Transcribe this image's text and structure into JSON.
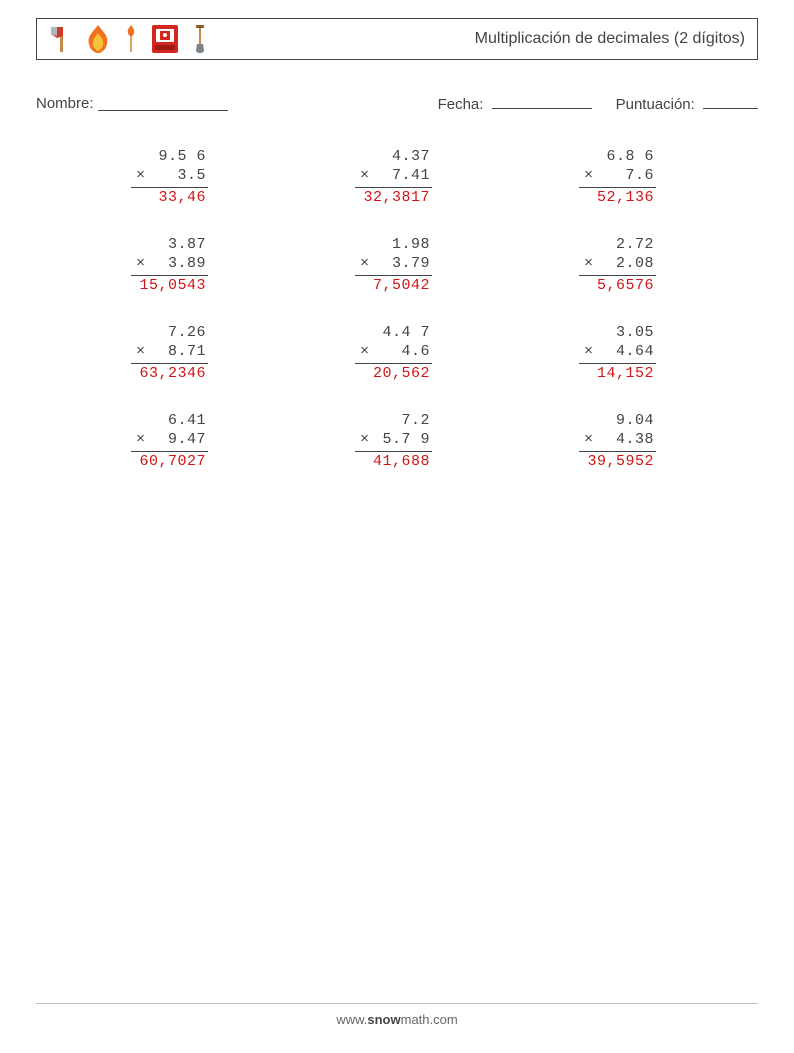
{
  "header": {
    "title": "Multiplicación de decimales (2 dígitos)",
    "icons": [
      "axe-icon",
      "fire-icon",
      "match-icon",
      "alarm-icon",
      "shovel-icon"
    ]
  },
  "labels": {
    "name": "Nombre:",
    "date": "Fecha:",
    "score": "Puntuación:"
  },
  "operator": "×",
  "colors": {
    "text": "#444444",
    "answer": "#d21616",
    "border": "#444444",
    "background": "#ffffff"
  },
  "fonts": {
    "body": "Arial, Helvetica, sans-serif",
    "numbers": "monospace",
    "title_size": 16,
    "label_size": 15,
    "number_size": 15
  },
  "problems": [
    {
      "a": "9.5 6",
      "b": "3.5",
      "ans": "33,46"
    },
    {
      "a": "4.37",
      "b": "7.41",
      "ans": "32,3817"
    },
    {
      "a": "6.8 6",
      "b": "7.6",
      "ans": "52,136"
    },
    {
      "a": "3.87",
      "b": "3.89",
      "ans": "15,0543"
    },
    {
      "a": "1.98",
      "b": "3.79",
      "ans": "7,5042"
    },
    {
      "a": "2.72",
      "b": "2.08",
      "ans": "5,6576"
    },
    {
      "a": "7.26",
      "b": "8.71",
      "ans": "63,2346"
    },
    {
      "a": "4.4 7",
      "b": "4.6",
      "ans": "20,562"
    },
    {
      "a": "3.05",
      "b": "4.64",
      "ans": "14,152"
    },
    {
      "a": "6.41",
      "b": "9.47",
      "ans": "60,7027"
    },
    {
      "a": "7.2",
      "b": "5.7 9",
      "ans": "41,688"
    },
    {
      "a": "9.04",
      "b": "4.38",
      "ans": "39,5952"
    }
  ],
  "footer": {
    "prefix": "www.",
    "brand": "snow",
    "suffix": "math.com"
  }
}
